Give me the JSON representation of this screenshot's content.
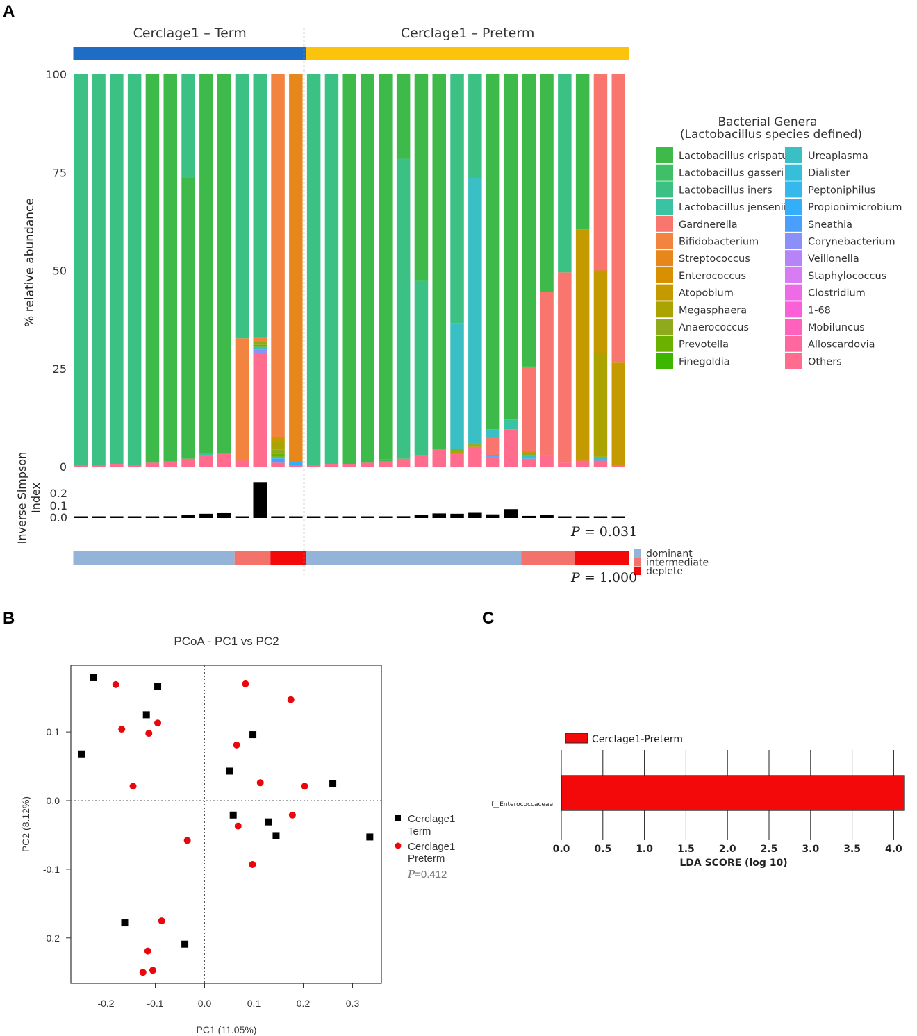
{
  "panel_labels": {
    "a": "A",
    "b": "B",
    "c": "C"
  },
  "chart_data": [
    {
      "type": "bar",
      "name": "stacked-relative-abundance",
      "groups": [
        {
          "label": "Cerclage1 – Term",
          "count": 13,
          "color": "#1f6cc4"
        },
        {
          "label": "Cerclage1 – Preterm",
          "count": 18,
          "color": "#fbc30c"
        }
      ],
      "ylabel": "% relative abundance",
      "yticks": [
        "0",
        "25",
        "50",
        "75",
        "100"
      ],
      "ylim": [
        0,
        100
      ],
      "legend_title": "Bacterial Genera",
      "legend_subtitle": "(Lactobacillus species defined)",
      "taxa": [
        {
          "name": "Lactobacillus crispatus",
          "color": "#3dba4a"
        },
        {
          "name": "Lactobacillus gasseri",
          "color": "#3fbf66"
        },
        {
          "name": "Lactobacillus iners",
          "color": "#3cc185"
        },
        {
          "name": "Lactobacillus jensenii",
          "color": "#3ac3a2"
        },
        {
          "name": "Gardnerella",
          "color": "#f8766d"
        },
        {
          "name": "Bifidobacterium",
          "color": "#f28440"
        },
        {
          "name": "Streptococcus",
          "color": "#e7861b"
        },
        {
          "name": "Enterococcus",
          "color": "#d89000"
        },
        {
          "name": "Atopobium",
          "color": "#c49a00"
        },
        {
          "name": "Megasphaera",
          "color": "#aba300"
        },
        {
          "name": "Anaerococcus",
          "color": "#8fab1d"
        },
        {
          "name": "Prevotella",
          "color": "#6bb100"
        },
        {
          "name": "Finegoldia",
          "color": "#3db600"
        },
        {
          "name": "Ureaplasma",
          "color": "#39bfc4"
        },
        {
          "name": "Dialister",
          "color": "#35bfdb"
        },
        {
          "name": "Peptoniphilus",
          "color": "#35b8ec"
        },
        {
          "name": "Propionimicrobium",
          "color": "#33aef8"
        },
        {
          "name": "Sneathia",
          "color": "#4b9ffc"
        },
        {
          "name": "Corynebacterium",
          "color": "#8d8ff8"
        },
        {
          "name": "Veillonella",
          "color": "#b684f7"
        },
        {
          "name": "Staphylococcus",
          "color": "#d77cf2"
        },
        {
          "name": "Clostridium",
          "color": "#ee6be8"
        },
        {
          "name": "1-68",
          "color": "#fb61d7"
        },
        {
          "name": "Mobiluncus",
          "color": "#ff62bc"
        },
        {
          "name": "Alloscardovia",
          "color": "#ff679f"
        },
        {
          "name": "Others",
          "color": "#ff6c8d"
        }
      ],
      "samples": [
        {
          "segs": [
            [
              "Others",
              0.5
            ],
            [
              "Lactobacillus iners",
              99.5
            ]
          ]
        },
        {
          "segs": [
            [
              "Others",
              0.5
            ],
            [
              "Lactobacillus iners",
              99.5
            ]
          ]
        },
        {
          "segs": [
            [
              "Others",
              0.7
            ],
            [
              "Lactobacillus iners",
              99.3
            ]
          ]
        },
        {
          "segs": [
            [
              "Others",
              0.5
            ],
            [
              "Lactobacillus iners",
              99.5
            ]
          ]
        },
        {
          "segs": [
            [
              "Others",
              1.0
            ],
            [
              "Lactobacillus crispatus",
              99.0
            ]
          ]
        },
        {
          "segs": [
            [
              "Others",
              1.3
            ],
            [
              "Lactobacillus crispatus",
              98.7
            ]
          ]
        },
        {
          "segs": [
            [
              "Others",
              2.0
            ],
            [
              "Lactobacillus crispatus",
              71.5
            ],
            [
              "Lactobacillus iners",
              26.5
            ]
          ]
        },
        {
          "segs": [
            [
              "Others",
              3.0
            ],
            [
              "Lactobacillus jensenii",
              0.5
            ],
            [
              "Lactobacillus crispatus",
              96.5
            ]
          ]
        },
        {
          "segs": [
            [
              "Others",
              3.5
            ],
            [
              "Lactobacillus crispatus",
              96.5
            ]
          ]
        },
        {
          "segs": [
            [
              "Others",
              1.2
            ],
            [
              "Gardnerella",
              0.5
            ],
            [
              "Bifidobacterium",
              31.0
            ],
            [
              "Lactobacillus iners",
              67.3
            ]
          ]
        },
        {
          "segs": [
            [
              "Others",
              29.0
            ],
            [
              "Corynebacterium",
              0.8
            ],
            [
              "Ureaplasma",
              0.7
            ],
            [
              "Prevotella",
              0.5
            ],
            [
              "Anaerococcus",
              0.7
            ],
            [
              "Bifidobacterium",
              1.3
            ],
            [
              "Lactobacillus iners",
              67.0
            ]
          ]
        },
        {
          "segs": [
            [
              "Others",
              1.0
            ],
            [
              "Sneathia",
              1.0
            ],
            [
              "Peptoniphilus",
              0.5
            ],
            [
              "Prevotella",
              0.8
            ],
            [
              "Anaerococcus",
              1.0
            ],
            [
              "Megasphaera",
              2.0
            ],
            [
              "Atopobium",
              1.2
            ],
            [
              "Bifidobacterium",
              92.5
            ]
          ]
        },
        {
          "segs": [
            [
              "Others",
              0.5
            ],
            [
              "Propionimicrobium",
              0.7
            ],
            [
              "Streptococcus",
              98.8
            ]
          ]
        },
        {
          "segs": [
            [
              "Others",
              0.5
            ],
            [
              "Lactobacillus iners",
              99.5
            ]
          ]
        },
        {
          "segs": [
            [
              "Others",
              0.7
            ],
            [
              "Lactobacillus iners",
              99.3
            ]
          ]
        },
        {
          "segs": [
            [
              "Others",
              0.7
            ],
            [
              "Lactobacillus crispatus",
              99.3
            ]
          ]
        },
        {
          "segs": [
            [
              "Others",
              1.0
            ],
            [
              "Lactobacillus crispatus",
              99.0
            ]
          ]
        },
        {
          "segs": [
            [
              "Others",
              1.3
            ],
            [
              "Lactobacillus crispatus",
              0.5
            ],
            [
              "Lactobacillus crispatus",
              98.2
            ]
          ]
        },
        {
          "segs": [
            [
              "Others",
              1.5
            ],
            [
              "Gardnerella",
              0.5
            ],
            [
              "Lactobacillus iners",
              76.5
            ],
            [
              "Lactobacillus crispatus",
              21.5
            ]
          ]
        },
        {
          "segs": [
            [
              "Others",
              3.0
            ],
            [
              "Lactobacillus iners",
              44.5
            ],
            [
              "Lactobacillus crispatus",
              52.5
            ]
          ]
        },
        {
          "segs": [
            [
              "Others",
              4.5
            ],
            [
              "Lactobacillus crispatus",
              95.5
            ]
          ]
        },
        {
          "segs": [
            [
              "Others",
              3.5
            ],
            [
              "Megasphaera",
              0.5
            ],
            [
              "Anaerococcus",
              0.5
            ],
            [
              "Ureaplasma",
              32.0
            ],
            [
              "Lactobacillus iners",
              63.5
            ]
          ]
        },
        {
          "segs": [
            [
              "Others",
              5.0
            ],
            [
              "Megasphaera",
              0.5
            ],
            [
              "Anaerococcus",
              0.5
            ],
            [
              "Ureaplasma",
              67.5
            ],
            [
              "Lactobacillus iners",
              26.5
            ]
          ]
        },
        {
          "segs": [
            [
              "Others",
              2.5
            ],
            [
              "Sneathia",
              0.5
            ],
            [
              "Gardnerella",
              4.5
            ],
            [
              "Ureaplasma",
              2.0
            ],
            [
              "Lactobacillus crispatus",
              90.5
            ]
          ]
        },
        {
          "segs": [
            [
              "Others",
              9.5
            ],
            [
              "Lactobacillus jensenii",
              2.5
            ],
            [
              "Lactobacillus crispatus",
              88.0
            ]
          ]
        },
        {
          "segs": [
            [
              "Others",
              2.0
            ],
            [
              "Dialister",
              1.0
            ],
            [
              "Anaerococcus",
              0.5
            ],
            [
              "Atopobium",
              0.5
            ],
            [
              "Gardnerella",
              21.5
            ],
            [
              "Lactobacillus crispatus",
              74.5
            ]
          ]
        },
        {
          "segs": [
            [
              "Others",
              3.0
            ],
            [
              "Gardnerella",
              41.5
            ],
            [
              "Lactobacillus crispatus",
              55.5
            ]
          ]
        },
        {
          "segs": [
            [
              "Others",
              1.0
            ],
            [
              "Gardnerella",
              48.5
            ],
            [
              "Lactobacillus iners",
              50.5
            ]
          ]
        },
        {
          "segs": [
            [
              "Others",
              1.5
            ],
            [
              "Atopobium",
              59.0
            ],
            [
              "Lactobacillus crispatus",
              39.5
            ]
          ]
        },
        {
          "segs": [
            [
              "Others",
              1.5
            ],
            [
              "Dialister",
              1.0
            ],
            [
              "Megasphaera",
              26.5
            ],
            [
              "Atopobium",
              21.0
            ],
            [
              "Gardnerella",
              50.0
            ]
          ]
        },
        {
          "segs": [
            [
              "Others",
              0.5
            ],
            [
              "Atopobium",
              26.0
            ],
            [
              "Gardnerella",
              73.5
            ]
          ]
        }
      ],
      "diversity_title": "Inverse Simpson",
      "diversity_title2": "Index",
      "diversity_yticks": [
        "0.0",
        "0.1",
        "0.2"
      ],
      "diversity_values": [
        0.005,
        0.005,
        0.005,
        0.005,
        0.008,
        0.012,
        0.02,
        0.028,
        0.032,
        0.006,
        0.235,
        0.005,
        0.005,
        0.004,
        0.005,
        0.006,
        0.008,
        0.01,
        0.012,
        0.022,
        0.03,
        0.028,
        0.034,
        0.024,
        0.058,
        0.014,
        0.02,
        0.005,
        0.006,
        0.008,
        0.005
      ],
      "diversity_p": "= 0.031",
      "cst": [
        {
          "state": "dominant",
          "count": 9
        },
        {
          "state": "intermediate",
          "count": 2
        },
        {
          "state": "deplete",
          "count": 2
        },
        {
          "state": "dominant",
          "count": 12
        },
        {
          "state": "intermediate",
          "count": 3
        },
        {
          "state": "deplete",
          "count": 3
        }
      ],
      "cst_legend": [
        {
          "label": "dominant",
          "color": "#93b3d8"
        },
        {
          "label": "intermediate",
          "color": "#f3736a"
        },
        {
          "label": "deplete",
          "color": "#f4090a"
        }
      ],
      "cst_p": "= 1.000",
      "p_letter": "P"
    },
    {
      "type": "scatter",
      "name": "pcoa",
      "title": "PCoA - PC1 vs PC2",
      "xlabel": "PC1 (11.05%)",
      "ylabel": "PC2 (8.12%)",
      "xlim": [
        -0.275,
        0.36
      ],
      "ylim": [
        -0.265,
        0.197
      ],
      "xticks": [
        -0.2,
        -0.1,
        0.0,
        0.1,
        0.2,
        0.3
      ],
      "xtick_labels": [
        "-0.2",
        "-0.1",
        "0.0",
        "0.1",
        "0.2",
        "0.3"
      ],
      "yticks": [
        -0.2,
        -0.1,
        0.0,
        0.1
      ],
      "ytick_labels": [
        "-0.2",
        "-0.1",
        "0.0",
        "0.1"
      ],
      "series": [
        {
          "name": "Term",
          "legend_line1": "Cerclage1",
          "legend_line2": "Term",
          "marker": "square",
          "color": "#000000",
          "points": [
            [
              -0.225,
              0.179
            ],
            [
              -0.095,
              0.166
            ],
            [
              -0.118,
              0.125
            ],
            [
              0.098,
              0.096
            ],
            [
              -0.25,
              0.068
            ],
            [
              0.05,
              0.043
            ],
            [
              0.26,
              0.025
            ],
            [
              0.058,
              -0.021
            ],
            [
              0.13,
              -0.031
            ],
            [
              0.145,
              -0.051
            ],
            [
              0.335,
              -0.053
            ],
            [
              -0.162,
              -0.178
            ],
            [
              -0.04,
              -0.209
            ]
          ]
        },
        {
          "name": "Preterm",
          "legend_line1": "Cerclage1",
          "legend_line2": "Preterm",
          "marker": "circle",
          "color": "#e8070d",
          "points": [
            [
              -0.18,
              0.169
            ],
            [
              0.083,
              0.17
            ],
            [
              0.175,
              0.147
            ],
            [
              -0.095,
              0.113
            ],
            [
              -0.168,
              0.104
            ],
            [
              -0.113,
              0.098
            ],
            [
              0.065,
              0.081
            ],
            [
              0.113,
              0.026
            ],
            [
              0.203,
              0.021
            ],
            [
              -0.145,
              0.021
            ],
            [
              0.178,
              -0.021
            ],
            [
              0.068,
              -0.037
            ],
            [
              -0.035,
              -0.058
            ],
            [
              0.097,
              -0.093
            ],
            [
              -0.087,
              -0.175
            ],
            [
              -0.115,
              -0.219
            ],
            [
              -0.105,
              -0.247
            ],
            [
              -0.125,
              -0.25
            ]
          ]
        }
      ],
      "p_letter": "P",
      "p_value": "=0.412"
    },
    {
      "type": "bar",
      "name": "lefse-lda",
      "orientation": "horizontal",
      "legend_label": "Cerclage1-Preterm",
      "categories": [
        "f__Enterococcaceae"
      ],
      "values": [
        4.13
      ],
      "color": "#f4090a",
      "xlim": [
        0.0,
        4.15
      ],
      "xticks": [
        "0.0",
        "0.5",
        "1.0",
        "1.5",
        "2.0",
        "2.5",
        "3.0",
        "3.5",
        "4.0"
      ],
      "xlabel": "LDA SCORE (log 10)"
    }
  ]
}
